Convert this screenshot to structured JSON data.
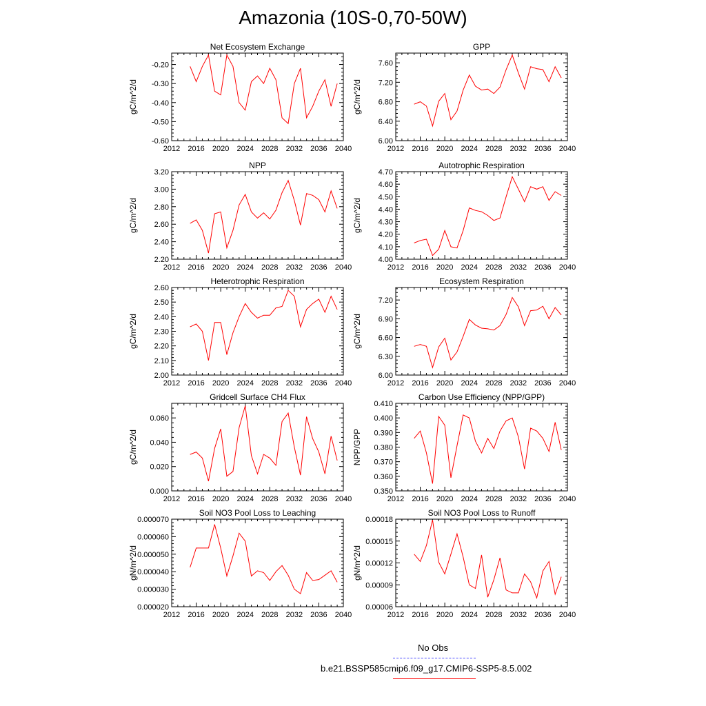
{
  "figure_title": "Amazonia (10S-0,70-50W)",
  "legend": {
    "obs_label": "No Obs",
    "obs_color": "#4444ff",
    "model_label": "b.e21.BSSP585cmip6.f09_g17.CMIP6-SSP5-8.5.002",
    "model_color": "#ff0000"
  },
  "chart_data": [
    {
      "type": "line",
      "title": "Net Ecosystem Exchange",
      "ylabel": "gC/m^2/d",
      "xlim": [
        2012,
        2040
      ],
      "x_ticks": [
        2012,
        2016,
        2020,
        2024,
        2028,
        2032,
        2036,
        2040
      ],
      "ylim": [
        -0.6,
        -0.14
      ],
      "y_ticks": [
        -0.6,
        -0.5,
        -0.4,
        -0.3,
        -0.2
      ],
      "y_tick_labels": [
        "-0.60",
        "-0.50",
        "-0.40",
        "-0.30",
        "-0.20"
      ],
      "series": [
        {
          "color": "#ff0000",
          "x": [
            2015,
            2016,
            2017,
            2018,
            2019,
            2020,
            2021,
            2022,
            2023,
            2024,
            2025,
            2026,
            2027,
            2028,
            2029,
            2030,
            2031,
            2032,
            2033,
            2034,
            2035,
            2036,
            2037,
            2038,
            2039
          ],
          "values": [
            -0.21,
            -0.29,
            -0.21,
            -0.15,
            -0.34,
            -0.36,
            -0.15,
            -0.21,
            -0.4,
            -0.44,
            -0.29,
            -0.26,
            -0.3,
            -0.22,
            -0.28,
            -0.48,
            -0.51,
            -0.3,
            -0.22,
            -0.48,
            -0.42,
            -0.34,
            -0.28,
            -0.42,
            -0.3
          ]
        }
      ]
    },
    {
      "type": "line",
      "title": "GPP",
      "ylabel": "gC/m^2/d",
      "xlim": [
        2012,
        2040
      ],
      "x_ticks": [
        2012,
        2016,
        2020,
        2024,
        2028,
        2032,
        2036,
        2040
      ],
      "ylim": [
        6.0,
        7.8
      ],
      "y_ticks": [
        6.0,
        6.4,
        6.8,
        7.2,
        7.6
      ],
      "y_tick_labels": [
        "6.00",
        "6.40",
        "6.80",
        "7.20",
        "7.60"
      ],
      "series": [
        {
          "color": "#ff0000",
          "x": [
            2015,
            2016,
            2017,
            2018,
            2019,
            2020,
            2021,
            2022,
            2023,
            2024,
            2025,
            2026,
            2027,
            2028,
            2029,
            2030,
            2031,
            2032,
            2033,
            2034,
            2035,
            2036,
            2037,
            2038,
            2039
          ],
          "values": [
            6.75,
            6.8,
            6.71,
            6.3,
            6.81,
            6.97,
            6.43,
            6.61,
            7.04,
            7.35,
            7.12,
            7.04,
            7.06,
            6.97,
            7.1,
            7.46,
            7.76,
            7.39,
            7.06,
            7.52,
            7.48,
            7.46,
            7.21,
            7.52,
            7.29
          ]
        }
      ]
    },
    {
      "type": "line",
      "title": "NPP",
      "ylabel": "gC/m^2/d",
      "xlim": [
        2012,
        2040
      ],
      "x_ticks": [
        2012,
        2016,
        2020,
        2024,
        2028,
        2032,
        2036,
        2040
      ],
      "ylim": [
        2.2,
        3.2
      ],
      "y_ticks": [
        2.2,
        2.4,
        2.6,
        2.8,
        3.0,
        3.2
      ],
      "y_tick_labels": [
        "2.20",
        "2.40",
        "2.60",
        "2.80",
        "3.00",
        "3.20"
      ],
      "series": [
        {
          "color": "#ff0000",
          "x": [
            2015,
            2016,
            2017,
            2018,
            2019,
            2020,
            2021,
            2022,
            2023,
            2024,
            2025,
            2026,
            2027,
            2028,
            2029,
            2030,
            2031,
            2032,
            2033,
            2034,
            2035,
            2036,
            2037,
            2038,
            2039
          ],
          "values": [
            2.61,
            2.65,
            2.53,
            2.27,
            2.72,
            2.74,
            2.33,
            2.53,
            2.82,
            2.94,
            2.74,
            2.67,
            2.73,
            2.66,
            2.76,
            2.96,
            3.1,
            2.87,
            2.59,
            2.95,
            2.93,
            2.88,
            2.74,
            2.98,
            2.78
          ]
        }
      ]
    },
    {
      "type": "line",
      "title": "Autotrophic Respiration",
      "ylabel": "gC/m^2/d",
      "xlim": [
        2012,
        2040
      ],
      "x_ticks": [
        2012,
        2016,
        2020,
        2024,
        2028,
        2032,
        2036,
        2040
      ],
      "ylim": [
        4.0,
        4.7
      ],
      "y_ticks": [
        4.0,
        4.1,
        4.2,
        4.3,
        4.4,
        4.5,
        4.6,
        4.7
      ],
      "y_tick_labels": [
        "4.00",
        "4.10",
        "4.20",
        "4.30",
        "4.40",
        "4.50",
        "4.60",
        "4.70"
      ],
      "series": [
        {
          "color": "#ff0000",
          "x": [
            2015,
            2016,
            2017,
            2018,
            2019,
            2020,
            2021,
            2022,
            2023,
            2024,
            2025,
            2026,
            2027,
            2028,
            2029,
            2030,
            2031,
            2032,
            2033,
            2034,
            2035,
            2036,
            2037,
            2038,
            2039
          ],
          "values": [
            4.13,
            4.15,
            4.16,
            4.03,
            4.08,
            4.23,
            4.1,
            4.09,
            4.23,
            4.41,
            4.39,
            4.38,
            4.35,
            4.31,
            4.33,
            4.5,
            4.66,
            4.56,
            4.46,
            4.58,
            4.56,
            4.58,
            4.47,
            4.54,
            4.51
          ]
        }
      ]
    },
    {
      "type": "line",
      "title": "Heterotrophic Respiration",
      "ylabel": "gC/m^2/d",
      "xlim": [
        2012,
        2040
      ],
      "x_ticks": [
        2012,
        2016,
        2020,
        2024,
        2028,
        2032,
        2036,
        2040
      ],
      "ylim": [
        2.0,
        2.6
      ],
      "y_ticks": [
        2.0,
        2.1,
        2.2,
        2.3,
        2.4,
        2.5,
        2.6
      ],
      "y_tick_labels": [
        "2.00",
        "2.10",
        "2.20",
        "2.30",
        "2.40",
        "2.50",
        "2.60"
      ],
      "series": [
        {
          "color": "#ff0000",
          "x": [
            2015,
            2016,
            2017,
            2018,
            2019,
            2020,
            2021,
            2022,
            2023,
            2024,
            2025,
            2026,
            2027,
            2028,
            2029,
            2030,
            2031,
            2032,
            2033,
            2034,
            2035,
            2036,
            2037,
            2038,
            2039
          ],
          "values": [
            2.33,
            2.35,
            2.3,
            2.1,
            2.36,
            2.36,
            2.14,
            2.29,
            2.4,
            2.49,
            2.43,
            2.39,
            2.41,
            2.41,
            2.46,
            2.47,
            2.58,
            2.54,
            2.33,
            2.45,
            2.49,
            2.52,
            2.43,
            2.54,
            2.45
          ]
        }
      ]
    },
    {
      "type": "line",
      "title": "Ecosystem Respiration",
      "ylabel": "gC/m^2/d",
      "xlim": [
        2012,
        2040
      ],
      "x_ticks": [
        2012,
        2016,
        2020,
        2024,
        2028,
        2032,
        2036,
        2040
      ],
      "ylim": [
        6.0,
        7.4
      ],
      "y_ticks": [
        6.0,
        6.3,
        6.6,
        6.9,
        7.2
      ],
      "y_tick_labels": [
        "6.00",
        "6.30",
        "6.60",
        "6.90",
        "7.20"
      ],
      "series": [
        {
          "color": "#ff0000",
          "x": [
            2015,
            2016,
            2017,
            2018,
            2019,
            2020,
            2021,
            2022,
            2023,
            2024,
            2025,
            2026,
            2027,
            2028,
            2029,
            2030,
            2031,
            2032,
            2033,
            2034,
            2035,
            2036,
            2037,
            2038,
            2039
          ],
          "values": [
            6.46,
            6.49,
            6.46,
            6.12,
            6.45,
            6.59,
            6.24,
            6.37,
            6.62,
            6.89,
            6.8,
            6.75,
            6.74,
            6.72,
            6.79,
            6.97,
            7.24,
            7.09,
            6.79,
            7.03,
            7.04,
            7.1,
            6.9,
            7.08,
            6.96
          ]
        }
      ]
    },
    {
      "type": "line",
      "title": "Gridcell Surface CH4 Flux",
      "ylabel": "gC/m^2/d",
      "xlim": [
        2012,
        2040
      ],
      "x_ticks": [
        2012,
        2016,
        2020,
        2024,
        2028,
        2032,
        2036,
        2040
      ],
      "ylim": [
        0.0,
        0.072
      ],
      "y_ticks": [
        0.0,
        0.02,
        0.04,
        0.06
      ],
      "y_tick_labels": [
        "0.000",
        "0.020",
        "0.040",
        "0.060"
      ],
      "series": [
        {
          "color": "#ff0000",
          "x": [
            2015,
            2016,
            2017,
            2018,
            2019,
            2020,
            2021,
            2022,
            2023,
            2024,
            2025,
            2026,
            2027,
            2028,
            2029,
            2030,
            2031,
            2032,
            2033,
            2034,
            2035,
            2036,
            2037,
            2038,
            2039
          ],
          "values": [
            0.03,
            0.032,
            0.027,
            0.008,
            0.035,
            0.051,
            0.012,
            0.016,
            0.052,
            0.07,
            0.029,
            0.014,
            0.03,
            0.027,
            0.021,
            0.057,
            0.064,
            0.036,
            0.013,
            0.061,
            0.043,
            0.032,
            0.014,
            0.045,
            0.025
          ]
        }
      ]
    },
    {
      "type": "line",
      "title": "Carbon Use Efficiency (NPP/GPP)",
      "ylabel": "NPP/GPP",
      "xlim": [
        2012,
        2040
      ],
      "x_ticks": [
        2012,
        2016,
        2020,
        2024,
        2028,
        2032,
        2036,
        2040
      ],
      "ylim": [
        0.35,
        0.41
      ],
      "y_ticks": [
        0.35,
        0.36,
        0.37,
        0.38,
        0.39,
        0.4,
        0.41
      ],
      "y_tick_labels": [
        "0.350",
        "0.360",
        "0.370",
        "0.380",
        "0.390",
        "0.400",
        "0.410"
      ],
      "series": [
        {
          "color": "#ff0000",
          "x": [
            2015,
            2016,
            2017,
            2018,
            2019,
            2020,
            2021,
            2022,
            2023,
            2024,
            2025,
            2026,
            2027,
            2028,
            2029,
            2030,
            2031,
            2032,
            2033,
            2034,
            2035,
            2036,
            2037,
            2038,
            2039
          ],
          "values": [
            0.386,
            0.391,
            0.376,
            0.355,
            0.401,
            0.395,
            0.359,
            0.381,
            0.402,
            0.4,
            0.384,
            0.376,
            0.386,
            0.379,
            0.391,
            0.398,
            0.4,
            0.387,
            0.365,
            0.393,
            0.391,
            0.386,
            0.377,
            0.397,
            0.378
          ]
        }
      ]
    },
    {
      "type": "line",
      "title": "Soil NO3 Pool Loss to Leaching",
      "ylabel": "gN/m^2/d",
      "xlim": [
        2012,
        2040
      ],
      "x_ticks": [
        2012,
        2016,
        2020,
        2024,
        2028,
        2032,
        2036,
        2040
      ],
      "ylim": [
        2e-05,
        7e-05
      ],
      "y_ticks": [
        2e-05,
        3e-05,
        4e-05,
        5e-05,
        6e-05,
        7e-05
      ],
      "y_tick_labels": [
        "0.000020",
        "0.000030",
        "0.000040",
        "0.000050",
        "0.000060",
        "0.000070"
      ],
      "series": [
        {
          "color": "#ff0000",
          "x": [
            2015,
            2016,
            2017,
            2018,
            2019,
            2020,
            2021,
            2022,
            2023,
            2024,
            2025,
            2026,
            2027,
            2028,
            2029,
            2030,
            2031,
            2032,
            2033,
            2034,
            2035,
            2036,
            2037,
            2038,
            2039
          ],
          "values": [
            4.25e-05,
            5.35e-05,
            5.35e-05,
            5.35e-05,
            6.7e-05,
            5.35e-05,
            3.75e-05,
            4.9e-05,
            6.2e-05,
            5.75e-05,
            3.75e-05,
            4.05e-05,
            3.95e-05,
            3.5e-05,
            4e-05,
            4.35e-05,
            3.8e-05,
            3e-05,
            2.75e-05,
            3.95e-05,
            3.5e-05,
            3.55e-05,
            3.8e-05,
            4.05e-05,
            3.4e-05
          ]
        }
      ]
    },
    {
      "type": "line",
      "title": "Soil NO3 Pool Loss to Runoff",
      "ylabel": "gN/m^2/d",
      "xlim": [
        2012,
        2040
      ],
      "x_ticks": [
        2012,
        2016,
        2020,
        2024,
        2028,
        2032,
        2036,
        2040
      ],
      "ylim": [
        6e-05,
        0.00018
      ],
      "y_ticks": [
        6e-05,
        9e-05,
        0.00012,
        0.00015,
        0.00018
      ],
      "y_tick_labels": [
        "0.00006",
        "0.00009",
        "0.00012",
        "0.00015",
        "0.00018"
      ],
      "series": [
        {
          "color": "#ff0000",
          "x": [
            2015,
            2016,
            2017,
            2018,
            2019,
            2020,
            2021,
            2022,
            2023,
            2024,
            2025,
            2026,
            2027,
            2028,
            2029,
            2030,
            2031,
            2032,
            2033,
            2034,
            2035,
            2036,
            2037,
            2038,
            2039
          ],
          "values": [
            0.000132,
            0.000122,
            0.000144,
            0.000179,
            0.000121,
            0.000105,
            0.000132,
            0.00016,
            0.000128,
            9e-05,
            8.5e-05,
            0.000131,
            7.3e-05,
            9.7e-05,
            0.000127,
            8.3e-05,
            7.9e-05,
            7.9e-05,
            0.000105,
            9.4e-05,
            7.2e-05,
            0.000109,
            0.000122,
            7.7e-05,
            0.000101
          ]
        }
      ]
    }
  ]
}
